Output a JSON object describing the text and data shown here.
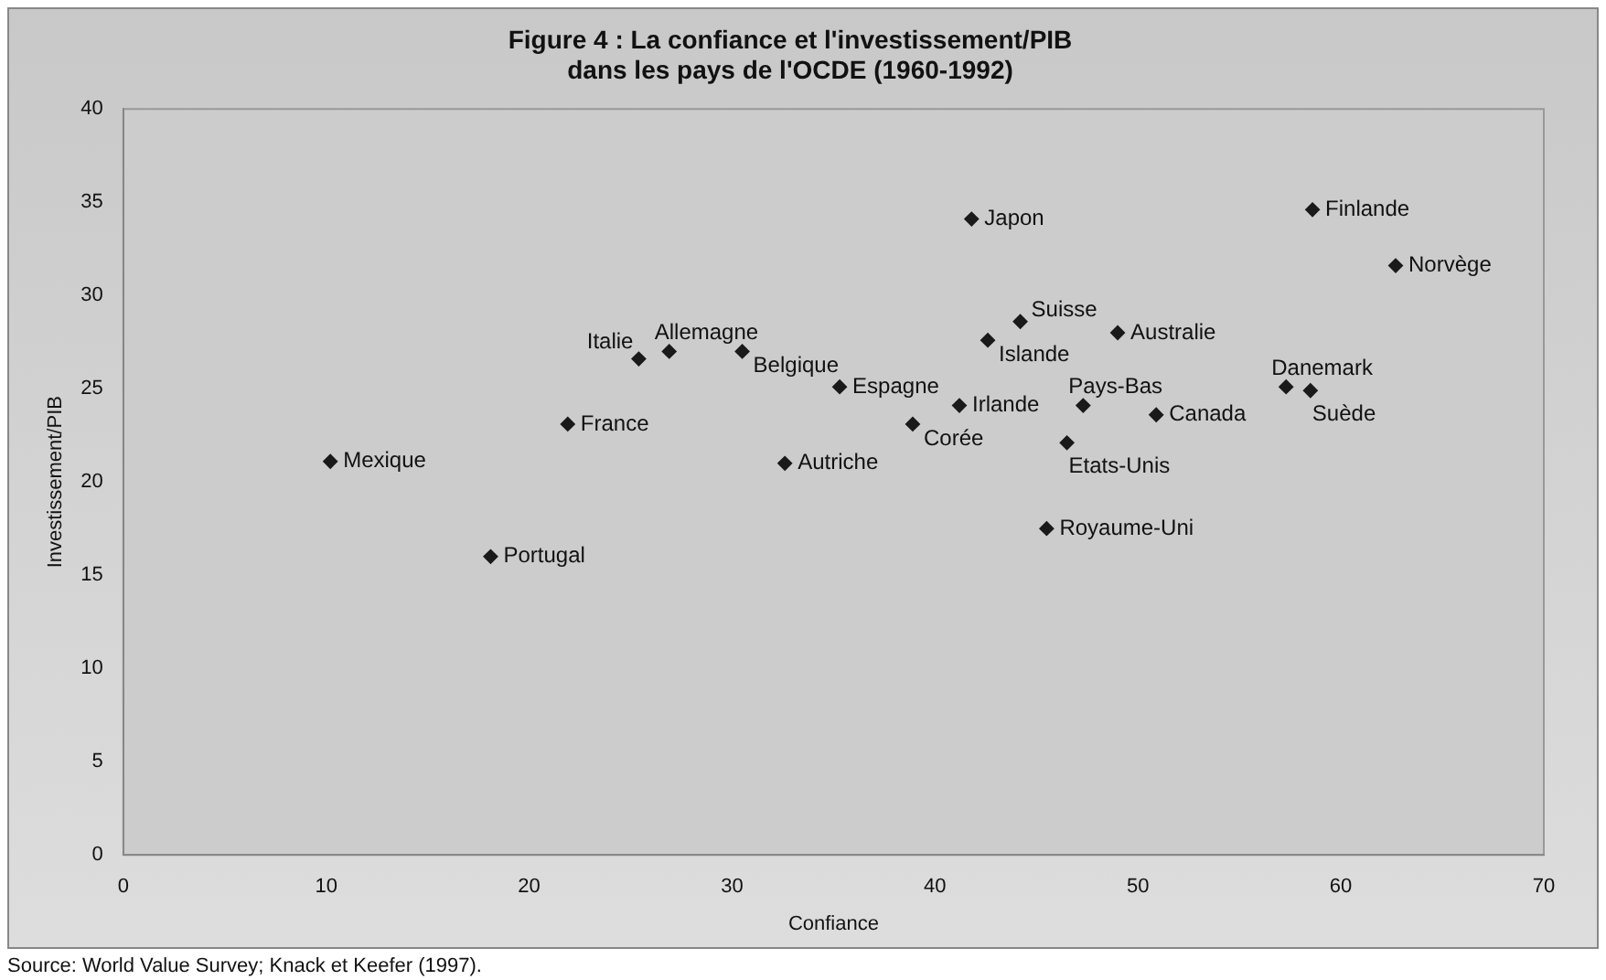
{
  "chart_data": {
    "type": "scatter",
    "title": "Figure 4 : La confiance et l'investissement/PIB\ndans les pays de l'OCDE (1960-1992)",
    "xlabel": "Confiance",
    "ylabel": "Investissement/PIB",
    "annotations": [
      "Source: World Value Survey; Knack et Keefer (1997)."
    ],
    "x": [
      10.2,
      18.1,
      21.9,
      25.4,
      26.9,
      30.5,
      32.6,
      35.3,
      38.9,
      41.2,
      41.8,
      42.6,
      44.2,
      47.3,
      46.5,
      45.5,
      49.0,
      50.9,
      57.3,
      58.5,
      58.6,
      62.7
    ],
    "values": [
      21.1,
      16.0,
      23.1,
      26.6,
      27.0,
      27.0,
      21.0,
      25.1,
      23.1,
      24.1,
      34.1,
      27.6,
      28.6,
      24.1,
      22.1,
      17.5,
      28.0,
      23.6,
      25.1,
      24.9,
      34.6,
      31.6
    ],
    "value_labels": [
      "Mexique",
      "Portugal",
      "France",
      "Italie",
      "Allemagne",
      "Belgique",
      "Autriche",
      "Espagne",
      "Corée",
      "Irlande",
      "Japon",
      "Islande",
      "Suisse",
      "Pays-Bas",
      "Etats-Unis",
      "Royaume-Uni",
      "Australie",
      "Canada",
      "Danemark",
      "Suède",
      "Finlande",
      "Norvège"
    ],
    "color": "#1a1a1a",
    "marker": "diamond",
    "grid": false,
    "legend": false,
    "xlim": [
      0,
      70
    ],
    "xticks": [
      0,
      10,
      20,
      30,
      40,
      50,
      60,
      70
    ],
    "ylim": [
      0,
      40
    ],
    "yticks": [
      0,
      5,
      10,
      15,
      20,
      25,
      30,
      35,
      40
    ]
  }
}
